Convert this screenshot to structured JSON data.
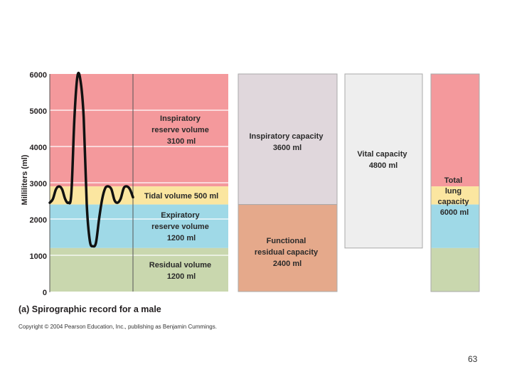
{
  "y_axis": {
    "label": "Milliliters (ml)",
    "ticks": [
      "6000",
      "5000",
      "4000",
      "3000",
      "2000",
      "1000",
      "0"
    ]
  },
  "volumes": [
    {
      "key": "irv",
      "lines": [
        "Inspiratory",
        "reserve volume",
        "3100 ml"
      ],
      "from": 2900,
      "to": 6000,
      "color": "#f4999c"
    },
    {
      "key": "tv",
      "lines": [
        "Tidal volume 500 ml"
      ],
      "from": 2400,
      "to": 2900,
      "color": "#fbe6a0"
    },
    {
      "key": "erv",
      "lines": [
        "Expiratory",
        "reserve volume",
        "1200 ml"
      ],
      "from": 1200,
      "to": 2400,
      "color": "#9fd9e7"
    },
    {
      "key": "rv",
      "lines": [
        "Residual volume",
        "1200 ml"
      ],
      "from": 0,
      "to": 1200,
      "color": "#c9d7ae"
    }
  ],
  "capacities": [
    {
      "key": "ic",
      "lines": [
        "Inspiratory capacity",
        "3600 ml"
      ],
      "from": 2400,
      "to": 6000,
      "color": "#e0d7dc"
    },
    {
      "key": "frc",
      "lines": [
        "Functional",
        "residual capacity",
        "2400 ml"
      ],
      "from": 0,
      "to": 2400,
      "color": "#e5a98b"
    },
    {
      "key": "vc",
      "lines": [
        "Vital capacity",
        "4800 ml"
      ],
      "from": 1200,
      "to": 6000,
      "color": "#eeeeee"
    },
    {
      "key": "tlc",
      "lines": [
        "Total",
        "lung",
        "capacity",
        "6000 ml"
      ],
      "from": 0,
      "to": 6000
    }
  ],
  "trace": {
    "points_ml": [
      2450,
      2550,
      2820,
      2900,
      2820,
      2550,
      2450,
      2700,
      4800,
      5950,
      5800,
      4800,
      2400,
      1400,
      1250,
      1350,
      2000,
      2550,
      2850,
      2900,
      2820,
      2520,
      2450,
      2560,
      2850,
      2900,
      2820,
      2600
    ]
  },
  "caption": "(a) Spirographic record for a male",
  "copyright": "Copyright © 2004 Pearson Education, Inc., publishing as Benjamin Cummings.",
  "page_number": "63"
}
